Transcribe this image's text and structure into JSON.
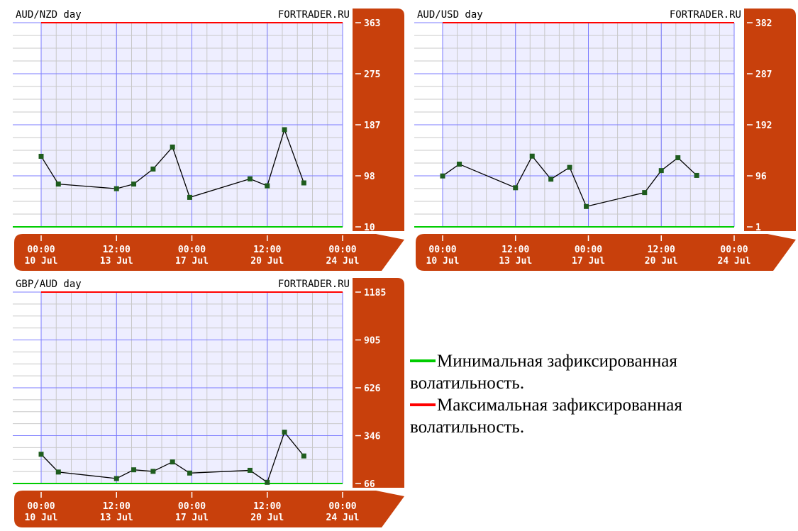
{
  "colors": {
    "frame_orange": "#c8400c",
    "plot_bg": "#eeeeff",
    "minor_grid": "#c8c8c8",
    "major_grid": "#7b7bff",
    "max_line": "#ff0000",
    "min_line": "#00cc00",
    "series_line": "#000000",
    "marker": "#1e5c1e"
  },
  "chart_data": [
    {
      "type": "line",
      "title": "AUD/NZD day",
      "brand": "FORTRADER.RU",
      "y_ticks": [
        "363",
        "275",
        "187",
        "98",
        "10"
      ],
      "x_ticks": [
        {
          "time": "00:00",
          "date": "10 Jul"
        },
        {
          "time": "12:00",
          "date": "13 Jul"
        },
        {
          "time": "00:00",
          "date": "17 Jul"
        },
        {
          "time": "12:00",
          "date": "20 Jul"
        },
        {
          "time": "00:00",
          "date": "24 Jul"
        }
      ],
      "xlim": [
        0,
        14
      ],
      "ylim": [
        10,
        363
      ],
      "max_level": 363,
      "min_level": 10,
      "series": [
        {
          "x": [
            0,
            0.8,
            3.5,
            4.3,
            5.2,
            6.1,
            6.9,
            9.7,
            10.5,
            11.3,
            12.2
          ],
          "y": [
            132,
            84,
            76,
            84,
            110,
            148,
            61,
            93,
            81,
            178,
            86
          ]
        }
      ]
    },
    {
      "type": "line",
      "title": "AUD/USD day",
      "brand": "FORTRADER.RU",
      "y_ticks": [
        "382",
        "287",
        "192",
        "96",
        "1"
      ],
      "x_ticks": [
        {
          "time": "00:00",
          "date": "10 Jul"
        },
        {
          "time": "12:00",
          "date": "13 Jul"
        },
        {
          "time": "00:00",
          "date": "17 Jul"
        },
        {
          "time": "12:00",
          "date": "20 Jul"
        },
        {
          "time": "00:00",
          "date": "24 Jul"
        }
      ],
      "xlim": [
        0,
        14
      ],
      "ylim": [
        1,
        382
      ],
      "max_level": 382,
      "min_level": 1,
      "series": [
        {
          "x": [
            0,
            0.8,
            3.5,
            4.3,
            5.2,
            6.1,
            6.9,
            9.7,
            10.5,
            11.3,
            12.2
          ],
          "y": [
            96,
            118,
            74,
            133,
            90,
            112,
            39,
            65,
            106,
            130,
            97
          ]
        }
      ]
    },
    {
      "type": "line",
      "title": "GBP/AUD day",
      "brand": "FORTRADER.RU",
      "y_ticks": [
        "1185",
        "905",
        "626",
        "346",
        "66"
      ],
      "x_ticks": [
        {
          "time": "00:00",
          "date": "10 Jul"
        },
        {
          "time": "12:00",
          "date": "13 Jul"
        },
        {
          "time": "00:00",
          "date": "17 Jul"
        },
        {
          "time": "12:00",
          "date": "20 Jul"
        },
        {
          "time": "00:00",
          "date": "24 Jul"
        }
      ],
      "xlim": [
        0,
        14
      ],
      "ylim": [
        66,
        1185
      ],
      "max_level": 1185,
      "min_level": 66,
      "series": [
        {
          "x": [
            0,
            0.8,
            3.5,
            4.3,
            5.2,
            6.1,
            6.9,
            9.7,
            10.5,
            11.3,
            12.2
          ],
          "y": [
            237,
            133,
            95,
            146,
            137,
            192,
            127,
            143,
            73,
            366,
            227
          ]
        }
      ]
    }
  ],
  "legend": {
    "min_text": "Минимальная зафиксированная волатильность.",
    "max_text": "Максимальная зафиксированная волатильность."
  }
}
